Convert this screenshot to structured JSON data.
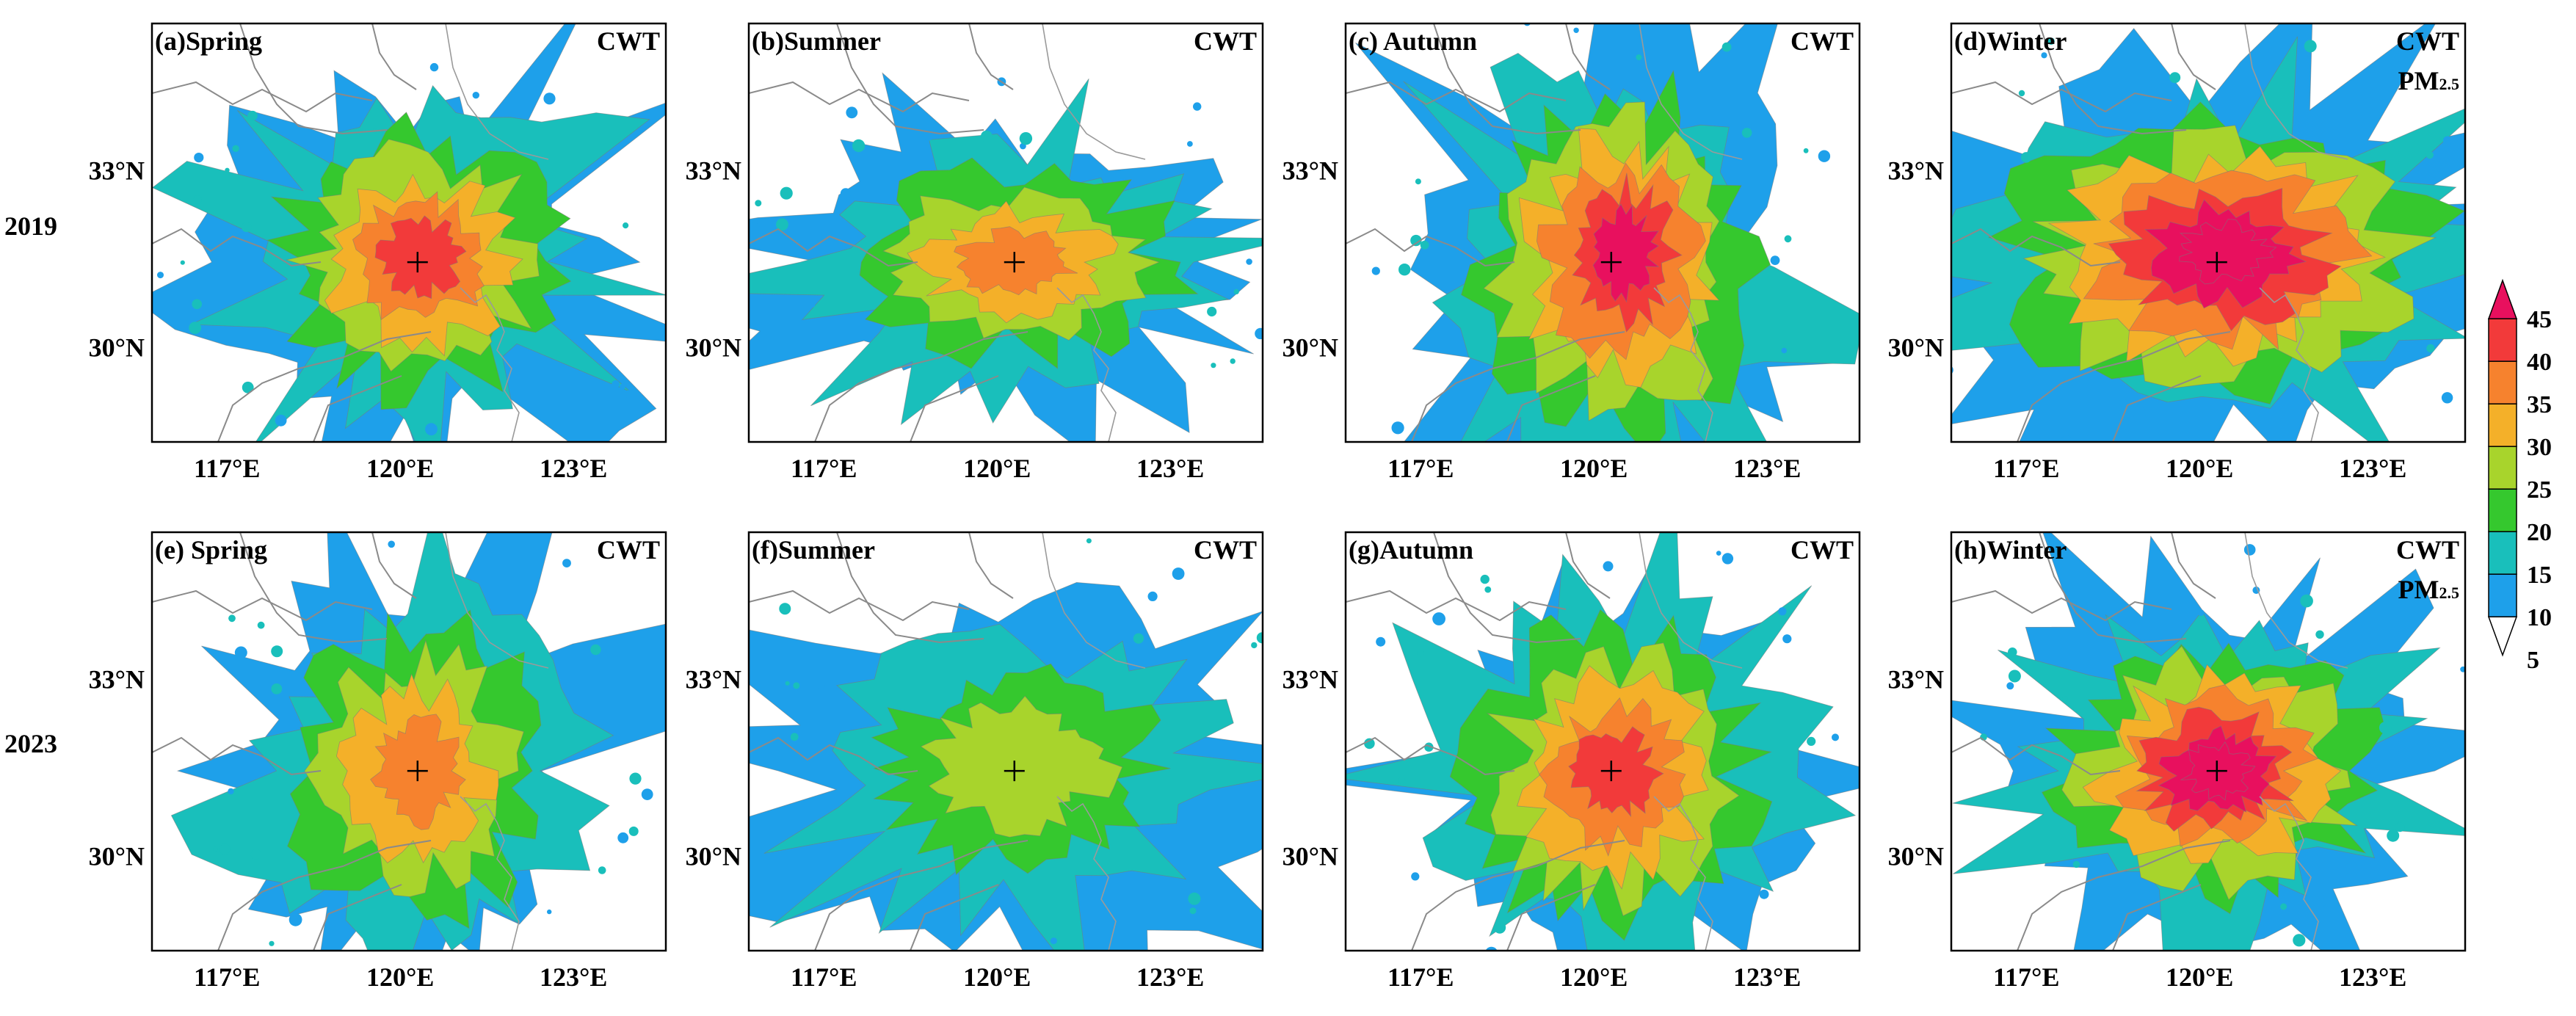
{
  "row_labels": [
    "2019",
    "2023"
  ],
  "colorbar": {
    "labels": [
      "45",
      "40",
      "35",
      "30",
      "25",
      "20",
      "15",
      "10",
      "5"
    ],
    "colors": [
      "#e8105e",
      "#f23a3a",
      "#f6822e",
      "#f4b029",
      "#a8d42c",
      "#35c82e",
      "#19bfbb",
      "#1ea0ea",
      "#ffffff"
    ]
  },
  "axes": {
    "x_ticks": [
      "117°E",
      "120°E",
      "123°E"
    ],
    "y_ticks": [
      "33°N",
      "30°N"
    ]
  },
  "panels": [
    {
      "id": "a",
      "title": "(a)Spring",
      "method": "CWT",
      "pollutant": ""
    },
    {
      "id": "b",
      "title": "(b)Summer",
      "method": "CWT",
      "pollutant": ""
    },
    {
      "id": "c",
      "title": "(c) Autumn",
      "method": "CWT",
      "pollutant": ""
    },
    {
      "id": "d",
      "title": "(d)Winter",
      "method": "CWT",
      "pollutant": "PM2.5"
    },
    {
      "id": "e",
      "title": "(e) Spring",
      "method": "CWT",
      "pollutant": ""
    },
    {
      "id": "f",
      "title": "(f)Summer",
      "method": "CWT",
      "pollutant": ""
    },
    {
      "id": "g",
      "title": "(g)Autumn",
      "method": "CWT",
      "pollutant": ""
    },
    {
      "id": "h",
      "title": "(h)Winter",
      "method": "CWT",
      "pollutant": "PM2.5"
    }
  ],
  "plumes": [
    {
      "id": "a",
      "levels": [
        4,
        5,
        6,
        7,
        6
      ],
      "stretch": [
        1.0,
        1.0
      ],
      "skew": 0.1
    },
    {
      "id": "b",
      "levels": [
        2,
        3,
        4,
        5,
        5
      ],
      "stretch": [
        1.2,
        0.75
      ],
      "skew": 0.0
    },
    {
      "id": "c",
      "levels": [
        3,
        4,
        5,
        6,
        7
      ],
      "stretch": [
        0.9,
        1.3
      ],
      "skew": 0.35
    },
    {
      "id": "d",
      "levels": [
        5,
        6,
        7,
        8,
        8
      ],
      "stretch": [
        1.4,
        1.0
      ],
      "skew": 0.2
    },
    {
      "id": "e",
      "levels": [
        2,
        3,
        4,
        5,
        5
      ],
      "stretch": [
        0.9,
        1.2
      ],
      "skew": 0.0
    },
    {
      "id": "f",
      "levels": [
        2,
        3,
        3,
        4,
        3
      ],
      "stretch": [
        1.3,
        1.0
      ],
      "skew": 0.1
    },
    {
      "id": "g",
      "levels": [
        2,
        3,
        4,
        5,
        6
      ],
      "stretch": [
        1.0,
        1.15
      ],
      "skew": 0.1
    },
    {
      "id": "h",
      "levels": [
        3,
        4,
        6,
        7,
        8
      ],
      "stretch": [
        1.0,
        0.9
      ],
      "skew": 0.0
    }
  ]
}
